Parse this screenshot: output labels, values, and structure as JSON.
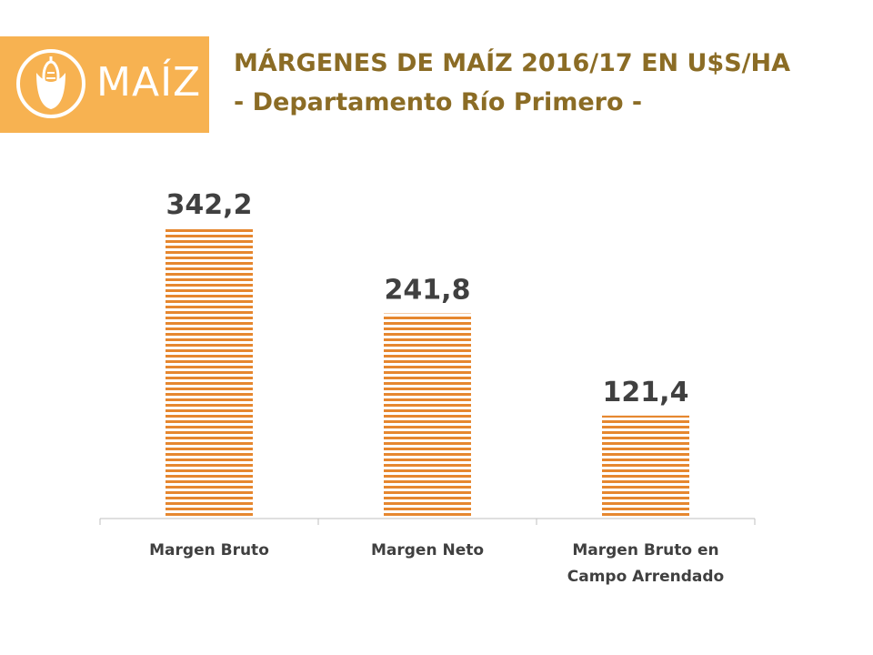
{
  "logo": {
    "text": "MAÍZ",
    "icon": "corn-icon",
    "bg_color": "#f7b251"
  },
  "header": {
    "title": "MÁRGENES DE MAÍZ 2016/17 EN U$S/HA",
    "subtitle": "- Departamento Río Primero -"
  },
  "chart_data": {
    "type": "bar",
    "categories": [
      [
        "Margen Bruto"
      ],
      [
        "Margen Neto"
      ],
      [
        "Margen Bruto en",
        "Campo Arrendado"
      ]
    ],
    "values": [
      342.2,
      241.8,
      121.4
    ],
    "value_labels": [
      "342,2",
      "241,8",
      "121,4"
    ],
    "ylim": [
      0,
      400
    ],
    "grid": false,
    "legend": "none",
    "bar_color": "#e6872f",
    "bar_pattern": "horizontal-stripes"
  }
}
